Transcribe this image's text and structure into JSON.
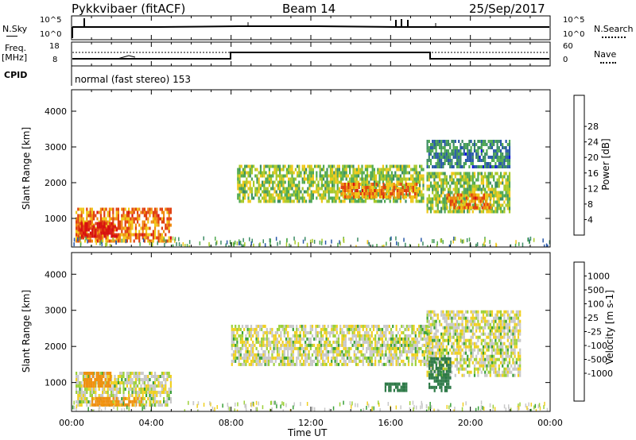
{
  "header": {
    "station": "Pykkvibaer (fitACF)",
    "beam": "Beam 14",
    "date": "25/Sep/2017"
  },
  "status_panels": {
    "nsky_label": "N.Sky",
    "nsky_ticks": [
      "10^5",
      "10^0"
    ],
    "nsearch_label": "N.Search",
    "nsearch_ticks": [
      "10^5",
      "10^0"
    ],
    "freq_label": "Freq.",
    "freq_unit": "[MHz]",
    "freq_ticks": [
      "18",
      "8"
    ],
    "nave_label": "Nave",
    "nave_ticks": [
      "60",
      "0"
    ],
    "cpid_label": "CPID",
    "cpid_value": "normal (fast stereo) 153"
  },
  "chart_data": [
    {
      "type": "heatmap",
      "name": "power",
      "ylabel": "Slant Range [km]",
      "ytick_labels": [
        "1000",
        "2000",
        "3000",
        "4000"
      ],
      "ylim": [
        200,
        4600
      ],
      "xlim": [
        0,
        24
      ],
      "colorbar": {
        "label": "Power [dB]",
        "tick_labels": [
          "4",
          "8",
          "12",
          "16",
          "20",
          "24",
          "28"
        ],
        "colors": [
          "#1010e0",
          "#2858a8",
          "#3c8c64",
          "#50aa50",
          "#a8c828",
          "#f0c818",
          "#f08c10",
          "#e04010",
          "#d81010"
        ],
        "range": [
          0,
          30
        ]
      },
      "echo_regions": [
        {
          "t0": 0.2,
          "t1": 5.0,
          "r0": 400,
          "r1": 1300,
          "power": 22
        },
        {
          "t0": 0.3,
          "t1": 2.3,
          "r0": 500,
          "r1": 900,
          "power": 28
        },
        {
          "t0": 8.3,
          "t1": 17.6,
          "r0": 1500,
          "r1": 2500,
          "power": 14
        },
        {
          "t0": 13.5,
          "t1": 17.3,
          "r0": 1600,
          "r1": 2000,
          "power": 22
        },
        {
          "t0": 17.8,
          "t1": 22.0,
          "r0": 1200,
          "r1": 2300,
          "power": 14
        },
        {
          "t0": 18.8,
          "t1": 21.0,
          "r0": 1300,
          "r1": 1700,
          "power": 22
        },
        {
          "t0": 17.8,
          "t1": 22.0,
          "r0": 2400,
          "r1": 3200,
          "power": 8
        }
      ]
    },
    {
      "type": "heatmap",
      "name": "velocity",
      "ylabel": "Slant Range [km]",
      "ytick_labels": [
        "1000",
        "2000",
        "3000",
        "4000"
      ],
      "ylim": [
        200,
        4600
      ],
      "xlim": [
        0,
        24
      ],
      "xlabel": "Time UT",
      "xtick_labels": [
        "00:00",
        "04:00",
        "08:00",
        "12:00",
        "16:00",
        "20:00",
        "00:00"
      ],
      "colorbar": {
        "label": "Velocity [m s-1]",
        "tick_labels": [
          "1000",
          "500",
          "100",
          "25",
          "-25",
          "-100",
          "-500",
          "-1000"
        ],
        "colors": [
          "#1030c0",
          "#2878b0",
          "#2e7a48",
          "#38a038",
          "#9cd038",
          "#c8c8c8",
          "#f0d020",
          "#f09010",
          "#e05010",
          "#d01010"
        ]
      },
      "echo_regions": [
        {
          "t0": 0.2,
          "t1": 5.0,
          "r0": 400,
          "r1": 1300,
          "vel": 0
        },
        {
          "t0": 0.6,
          "t1": 2.0,
          "r0": 900,
          "r1": 1300,
          "vel": -300
        },
        {
          "t0": 1.0,
          "t1": 3.5,
          "r0": 400,
          "r1": 600,
          "vel": -400
        },
        {
          "t0": 8.0,
          "t1": 18.0,
          "r0": 1500,
          "r1": 2600,
          "vel": 0
        },
        {
          "t0": 17.8,
          "t1": 22.5,
          "r0": 1200,
          "r1": 3000,
          "vel": 0
        },
        {
          "t0": 17.9,
          "t1": 19.0,
          "r0": 800,
          "r1": 1700,
          "vel": 250
        },
        {
          "t0": 15.7,
          "t1": 16.8,
          "r0": 800,
          "r1": 1000,
          "vel": 400
        }
      ]
    }
  ],
  "colors": {
    "frame": "#000000",
    "background": "#ffffff",
    "dotted": "#000000"
  }
}
